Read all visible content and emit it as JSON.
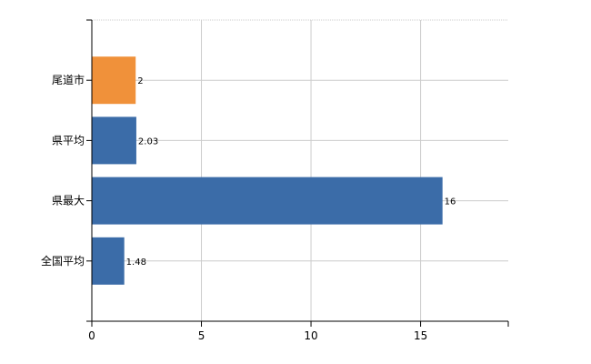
{
  "chart_data": {
    "type": "bar",
    "orientation": "horizontal",
    "categories": [
      "尾道市",
      "県平均",
      "県最大",
      "全国平均"
    ],
    "values": [
      2,
      2.03,
      16,
      1.48
    ],
    "value_labels": [
      "2",
      "2.03",
      "16",
      "1.48"
    ],
    "xlim": [
      0,
      19
    ],
    "xticks": [
      "0",
      "5",
      "10",
      "15"
    ],
    "xgrid": true,
    "ygrid": true,
    "colors": [
      "#F0913A",
      "#3B6CA8",
      "#3B6CA8",
      "#3B6CA8"
    ],
    "grid_color": "#cccccc"
  }
}
